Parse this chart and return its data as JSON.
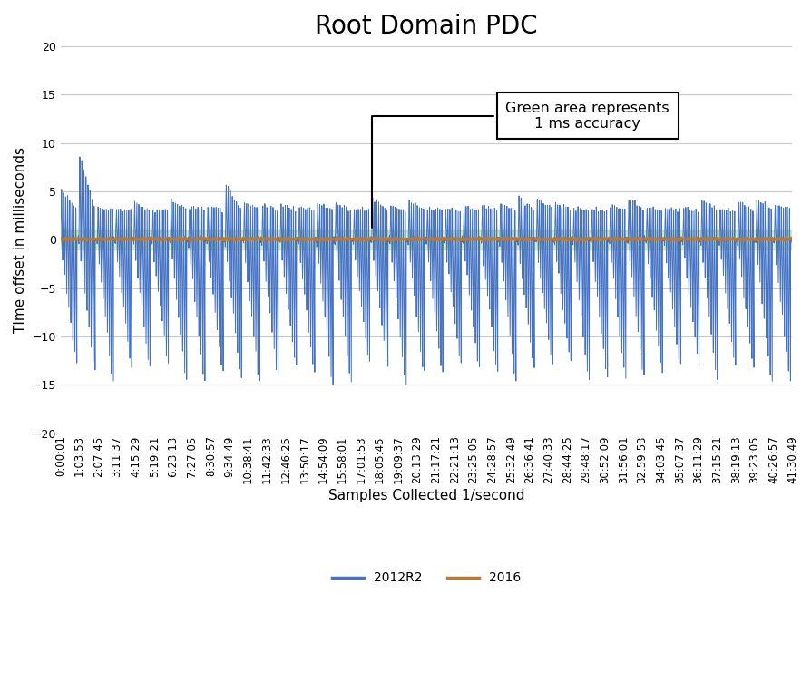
{
  "title": "Root Domain PDC",
  "xlabel": "Samples Collected 1/second",
  "ylabel": "TIme offset in milliseconds",
  "ylim": [
    -20,
    20
  ],
  "yticks": [
    -20,
    -15,
    -10,
    -5,
    0,
    5,
    10,
    15,
    20
  ],
  "green_band_upper": 1.0,
  "green_band_lower": -1.0,
  "blue_line_color": "#4472C4",
  "orange_line_color": "#C07830",
  "green_band_color": "#92D050",
  "background_color": "#FFFFFF",
  "x_labels": [
    "0:00:01",
    "1:03:53",
    "2:07:45",
    "3:11:37",
    "4:15:29",
    "5:19:21",
    "6:23:13",
    "7:27:05",
    "8:30:57",
    "9:34:49",
    "10:38:41",
    "11:42:33",
    "12:46:25",
    "13:50:17",
    "14:54:09",
    "15:58:01",
    "17:01:53",
    "18:05:45",
    "19:09:37",
    "20:13:29",
    "21:17:21",
    "22:21:13",
    "23:25:05",
    "24:28:57",
    "25:32:49",
    "26:36:41",
    "27:40:33",
    "28:44:25",
    "29:48:17",
    "30:52:09",
    "31:56:01",
    "32:59:53",
    "34:03:45",
    "35:07:37",
    "36:11:29",
    "37:15:21",
    "38:19:13",
    "39:23:05",
    "40:26:57",
    "41:30:49"
  ],
  "annotation_text": "Green area represents\n1 ms accuracy",
  "legend_labels": [
    "2012R2",
    "2016"
  ],
  "title_fontsize": 20,
  "axis_fontsize": 11,
  "tick_fontsize": 8.5,
  "n_points": 5000,
  "num_main_cycles": 40,
  "sub_cycles_per_main": 8,
  "peak_val": 3.5,
  "trough_val": -14.5
}
